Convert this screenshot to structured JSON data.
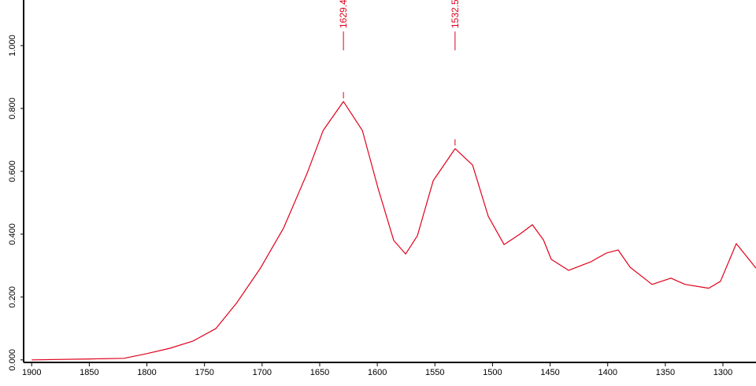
{
  "chart_data": {
    "type": "line",
    "x": [
      1900,
      1850,
      1820,
      1800,
      1780,
      1760,
      1740,
      1722.3,
      1701.8,
      1681.3,
      1660.8,
      1647,
      1629.4,
      1613,
      1599.3,
      1585.7,
      1575.4,
      1565.2,
      1551.5,
      1532.5,
      1517.3,
      1503.7,
      1490,
      1476.3,
      1465.4,
      1455.8,
      1449,
      1434,
      1414.8,
      1401.2,
      1391,
      1380.6,
      1361.5,
      1345.1,
      1332.8,
      1312.3,
      1302.1,
      1288.4,
      1271.3
    ],
    "series": [
      {
        "color": "#e0001b",
        "values": [
          0,
          0.003,
          0.005,
          0.02,
          0.037,
          0.06,
          0.1,
          0.18,
          0.29,
          0.42,
          0.595,
          0.73,
          0.822,
          0.73,
          0.545,
          0.38,
          0.337,
          0.395,
          0.57,
          0.672,
          0.62,
          0.457,
          0.367,
          0.4,
          0.43,
          0.382,
          0.32,
          0.285,
          0.312,
          0.34,
          0.35,
          0.295,
          0.24,
          0.26,
          0.24,
          0.228,
          0.25,
          0.37,
          0.292
        ]
      }
    ],
    "peaks": [
      1629.4,
      1532.5
    ],
    "xlim": [
      1907,
      1271.3
    ],
    "ylim": [
      -0.008,
      1.145
    ],
    "xticks": [
      1900,
      1850,
      1800,
      1750,
      1700,
      1650,
      1600,
      1550,
      1500,
      1450,
      1400,
      1350,
      1300
    ],
    "yticks": [
      {
        "value": 0,
        "label": "0.000"
      },
      {
        "value": 0.2,
        "label": "0.200"
      },
      {
        "value": 0.4,
        "label": "0.400"
      },
      {
        "value": 0.6,
        "label": "0.600"
      },
      {
        "value": 0.8,
        "label": "0.800"
      },
      {
        "value": 1.0,
        "label": "1.000"
      }
    ]
  }
}
